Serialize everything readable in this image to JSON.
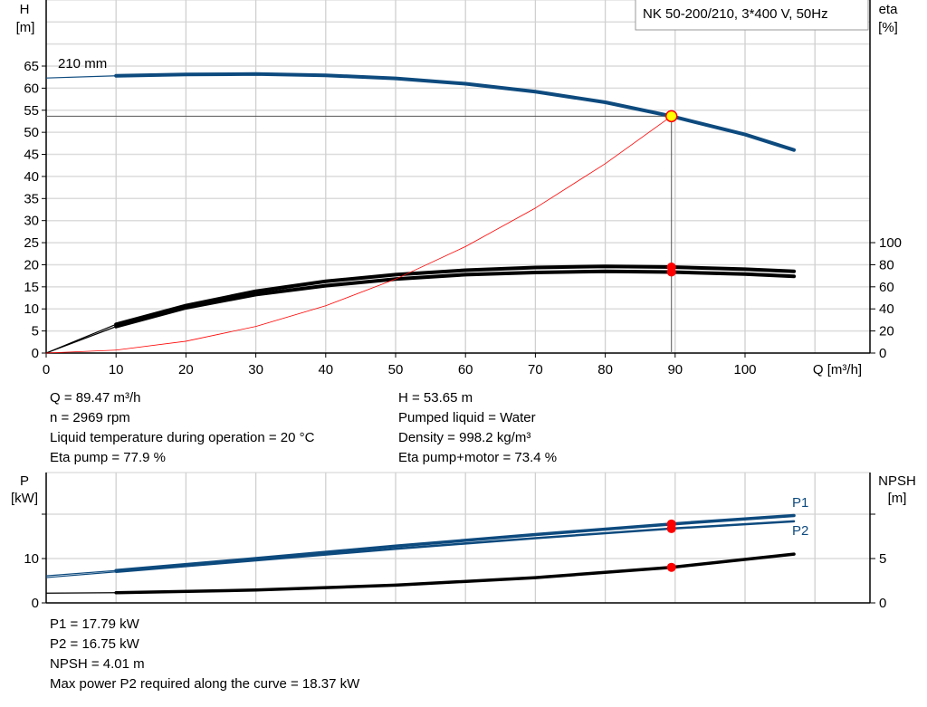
{
  "title": "NK 50-200/210, 3*400 V, 50Hz",
  "chart_data": [
    {
      "type": "line",
      "panel": "head-efficiency",
      "x_label": "Q [m³/h]",
      "x_ticks": [
        0,
        10,
        20,
        30,
        40,
        50,
        60,
        70,
        80,
        90,
        100
      ],
      "xlim": [
        0,
        117
      ],
      "y_left_label": [
        "H",
        "[m]"
      ],
      "y_left_ticks": [
        0,
        5,
        10,
        15,
        20,
        25,
        30,
        35,
        40,
        45,
        50,
        55,
        60,
        65
      ],
      "ylim_left": [
        0,
        80
      ],
      "y_right_label": [
        "eta",
        "[%]"
      ],
      "y_right_ticks": [
        0,
        20,
        40,
        60,
        80,
        100
      ],
      "ylim_right": [
        0,
        328
      ],
      "curve_label": "210 mm",
      "grid": true,
      "series": [
        {
          "key": "H",
          "axis": "left",
          "color": "#0d4a7e",
          "x": [
            0,
            10,
            20,
            30,
            40,
            50,
            60,
            70,
            80,
            89.47,
            100,
            107
          ],
          "y": [
            62.3,
            62.8,
            63.1,
            63.2,
            62.9,
            62.2,
            61.0,
            59.2,
            56.8,
            53.65,
            49.5,
            46.0
          ]
        },
        {
          "key": "eta_pump",
          "axis": "right",
          "color": "#000000",
          "x": [
            0,
            10,
            20,
            30,
            40,
            50,
            60,
            70,
            80,
            89.47,
            100,
            107
          ],
          "y": [
            0,
            26,
            43,
            56,
            65,
            71,
            75,
            77.5,
            78.5,
            77.9,
            76,
            74
          ]
        },
        {
          "key": "eta_pump_motor",
          "axis": "right",
          "color": "#000000",
          "x": [
            0,
            10,
            20,
            30,
            40,
            50,
            60,
            70,
            80,
            89.47,
            100,
            107
          ],
          "y": [
            0,
            24,
            41,
            53,
            61,
            67,
            71,
            73,
            74,
            73.4,
            71.5,
            69.5
          ]
        },
        {
          "key": "system",
          "axis": "left",
          "color": "#ff0000",
          "x": [
            0,
            10,
            20,
            30,
            40,
            50,
            60,
            70,
            80,
            89.47
          ],
          "y": [
            0,
            0.67,
            2.68,
            6.03,
            10.72,
            16.75,
            24.12,
            32.84,
            42.89,
            53.65
          ]
        }
      ],
      "duty_point": {
        "Q": 89.47,
        "H": 53.65,
        "eta_pump": 77.9,
        "eta_pump_motor": 73.4
      }
    },
    {
      "type": "line",
      "panel": "power-npsh",
      "xlim": [
        0,
        117
      ],
      "y_left_label": [
        "P",
        "[kW]"
      ],
      "y_left_ticks": [
        0,
        10
      ],
      "ylim_left": [
        0,
        29.4
      ],
      "y_right_label": [
        "NPSH",
        "[m]"
      ],
      "y_right_ticks": [
        0,
        5
      ],
      "ylim_right": [
        0,
        14.7
      ],
      "grid": true,
      "series": [
        {
          "name": "P1",
          "axis": "left",
          "color": "#0d4a7e",
          "x": [
            0,
            10,
            30,
            50,
            70,
            89.47,
            107
          ],
          "y": [
            6.1,
            7.3,
            10.0,
            12.8,
            15.4,
            17.79,
            19.7
          ]
        },
        {
          "name": "P2",
          "axis": "left",
          "color": "#0d4a7e",
          "x": [
            0,
            10,
            30,
            50,
            70,
            89.47,
            107
          ],
          "y": [
            5.7,
            7.0,
            9.6,
            12.2,
            14.6,
            16.75,
            18.4
          ]
        },
        {
          "key": "NPSH",
          "axis": "right",
          "color": "#000000",
          "x": [
            0,
            10,
            30,
            50,
            70,
            89.47,
            107
          ],
          "y": [
            1.1,
            1.15,
            1.45,
            2.0,
            2.85,
            4.01,
            5.5
          ]
        }
      ],
      "duty_point": {
        "Q": 89.47,
        "P1": 17.79,
        "P2": 16.75,
        "NPSH": 4.01
      }
    }
  ],
  "info_top_left": [
    "Q = 89.47 m³/h",
    "n = 2969 rpm",
    "Liquid temperature during operation = 20 °C",
    "Eta pump = 77.9 %"
  ],
  "info_top_right": [
    "H = 53.65 m",
    "Pumped liquid = Water",
    "Density = 998.2 kg/m³",
    "Eta pump+motor = 73.4 %"
  ],
  "info_bottom": [
    "P1 = 17.79 kW",
    "P2 = 16.75 kW",
    "NPSH = 4.01 m",
    "Max power P2 required along the curve = 18.37 kW"
  ]
}
